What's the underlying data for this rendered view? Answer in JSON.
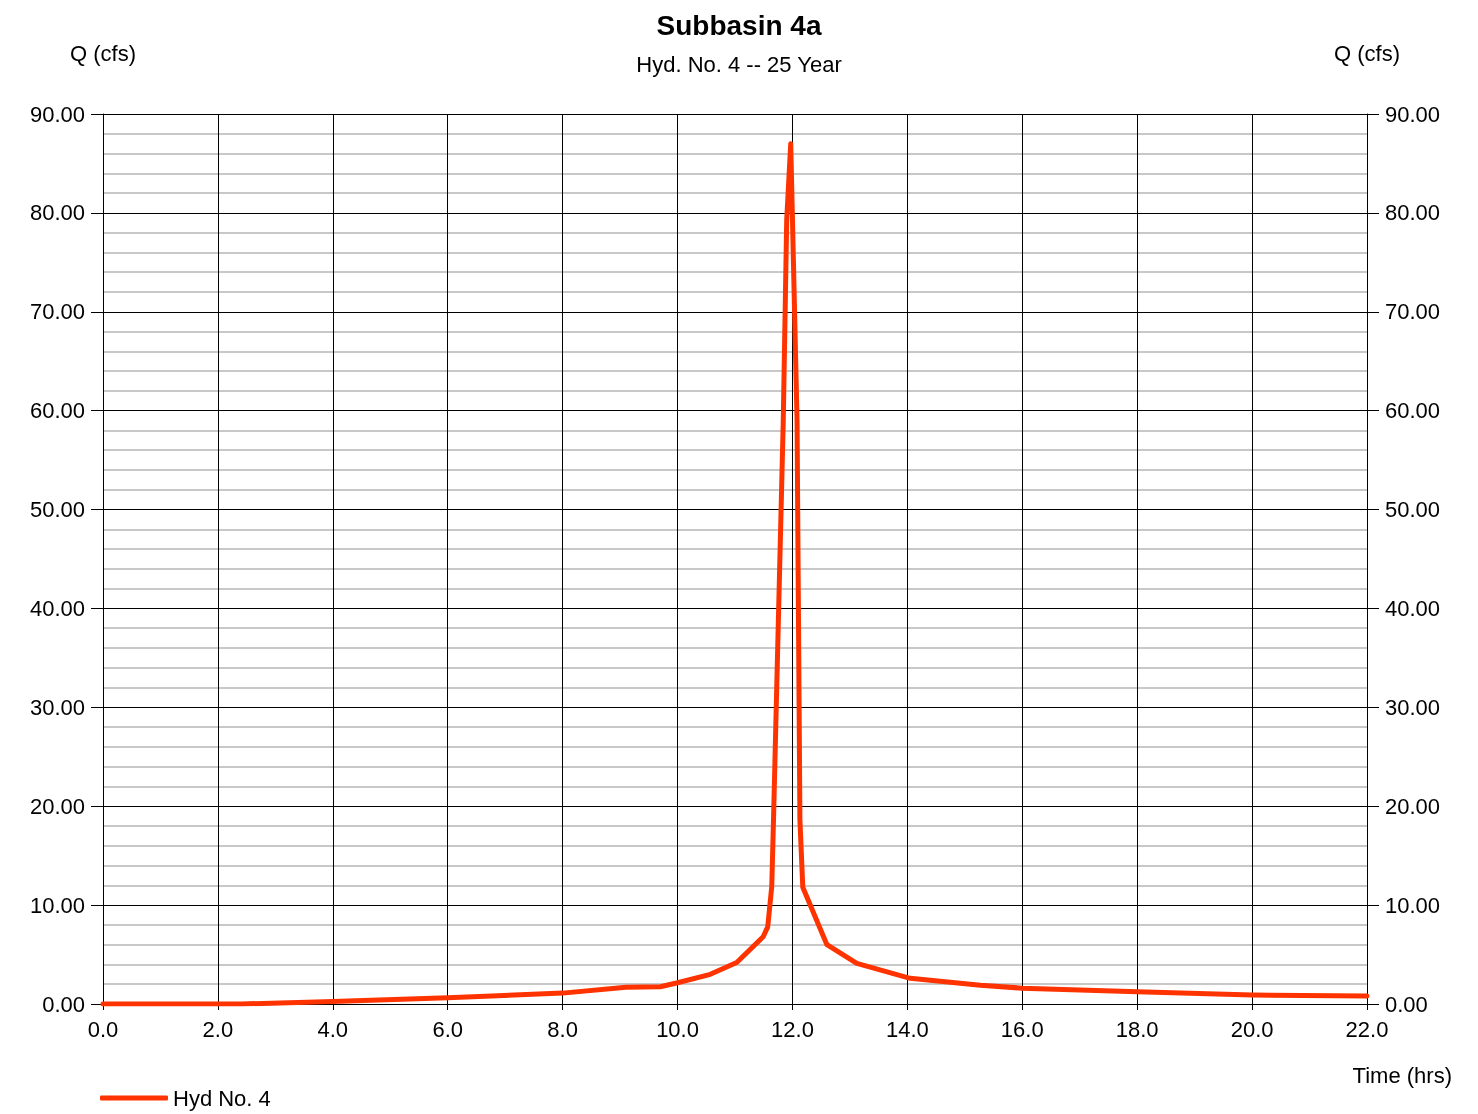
{
  "chart_data": {
    "type": "line",
    "title": "Subbasin 4a",
    "subtitle": "Hyd. No. 4 -- 25 Year",
    "xlabel": "Time (hrs)",
    "ylabel": "Q (cfs)",
    "y2label": "Q (cfs)",
    "series": [
      {
        "name": "Hyd No. 4",
        "color": "#ff3300",
        "x": [
          0,
          2.4,
          4,
          6,
          8,
          9.1,
          9.7,
          10,
          10.57,
          11.03,
          11.49,
          11.57,
          11.64,
          11.67,
          11.84,
          11.9,
          11.97,
          12.08,
          12.13,
          12.18,
          12.6,
          13.12,
          14.05,
          15.27,
          16,
          18,
          20,
          22
        ],
        "values": [
          0,
          0,
          0.25,
          0.64,
          1.1,
          1.7,
          1.75,
          2.15,
          3.0,
          4.2,
          6.8,
          7.8,
          11.9,
          18.6,
          59,
          79.3,
          87.0,
          59,
          18.6,
          11.8,
          6.0,
          4.1,
          2.6,
          1.9,
          1.6,
          1.25,
          0.9,
          0.8
        ]
      }
    ],
    "xlim": [
      0,
      22
    ],
    "ylim": [
      0,
      90
    ],
    "y2lim": [
      0,
      90
    ],
    "xticks": [
      {
        "value": 0,
        "label": "0.0"
      },
      {
        "value": 2,
        "label": "2.0"
      },
      {
        "value": 4,
        "label": "4.0"
      },
      {
        "value": 6,
        "label": "6.0"
      },
      {
        "value": 8,
        "label": "8.0"
      },
      {
        "value": 10,
        "label": "10.0"
      },
      {
        "value": 12,
        "label": "12.0"
      },
      {
        "value": 14,
        "label": "14.0"
      },
      {
        "value": 16,
        "label": "16.0"
      },
      {
        "value": 18,
        "label": "18.0"
      },
      {
        "value": 20,
        "label": "20.0"
      },
      {
        "value": 22,
        "label": "22.0"
      }
    ],
    "yticks": [
      {
        "value": 0,
        "label": "0.00"
      },
      {
        "value": 10,
        "label": "10.00"
      },
      {
        "value": 20,
        "label": "20.00"
      },
      {
        "value": 30,
        "label": "30.00"
      },
      {
        "value": 40,
        "label": "40.00"
      },
      {
        "value": 50,
        "label": "50.00"
      },
      {
        "value": 60,
        "label": "60.00"
      },
      {
        "value": 70,
        "label": "70.00"
      },
      {
        "value": 80,
        "label": "80.00"
      },
      {
        "value": 90,
        "label": "90.00"
      }
    ],
    "y2ticks": [
      {
        "value": 0,
        "label": "0.00"
      },
      {
        "value": 10,
        "label": "10.00"
      },
      {
        "value": 20,
        "label": "20.00"
      },
      {
        "value": 30,
        "label": "30.00"
      },
      {
        "value": 40,
        "label": "40.00"
      },
      {
        "value": 50,
        "label": "50.00"
      },
      {
        "value": 60,
        "label": "60.00"
      },
      {
        "value": 70,
        "label": "70.00"
      },
      {
        "value": 80,
        "label": "80.00"
      },
      {
        "value": 90,
        "label": "90.00"
      }
    ],
    "grid": true,
    "legend": "bottom left",
    "marker": "none",
    "line_style": "solid"
  }
}
